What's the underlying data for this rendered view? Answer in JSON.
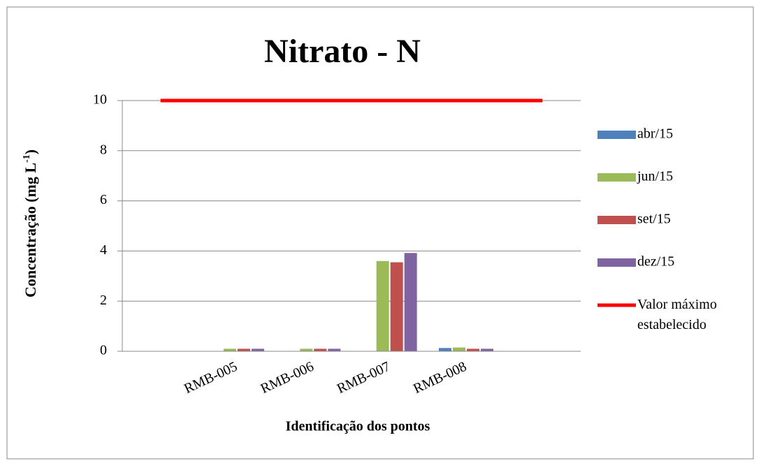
{
  "chart_data": {
    "type": "bar",
    "title": "Nitrato - N",
    "y_label_parts": [
      "Concentração (mg L",
      "-1",
      ")"
    ],
    "x_label": "Identificação dos pontos",
    "categories": [
      null,
      "RMB-005",
      "RMB-006",
      "RMB-007",
      "RMB-008",
      null
    ],
    "series": [
      {
        "name": "abr/15",
        "color": "#4f81bd",
        "values": [
          null,
          0,
          0,
          0,
          0.13,
          null
        ]
      },
      {
        "name": "jun/15",
        "color": "#9bbb59",
        "values": [
          null,
          0.1,
          0.1,
          3.6,
          0.15,
          null
        ]
      },
      {
        "name": "set/15",
        "color": "#c0504d",
        "values": [
          null,
          0.1,
          0.1,
          3.55,
          0.1,
          null
        ]
      },
      {
        "name": "dez/15",
        "color": "#8064a2",
        "values": [
          null,
          0.1,
          0.1,
          3.92,
          0.1,
          null
        ]
      },
      {
        "name": "Valor máximo estabelecido",
        "color": "#ff0000",
        "type": "line",
        "values": [
          10,
          10,
          10,
          10,
          10,
          10
        ]
      }
    ],
    "ylim": [
      0,
      10
    ],
    "yticks": [
      0,
      2,
      4,
      6,
      8,
      10
    ],
    "grid": true,
    "legend": "right"
  }
}
